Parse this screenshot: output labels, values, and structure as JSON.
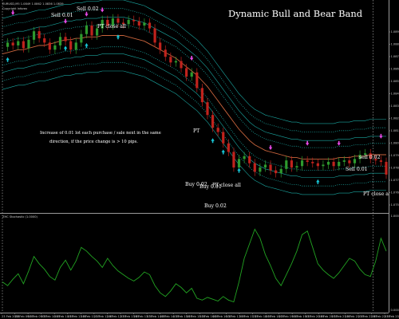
{
  "chart_data": [
    {
      "type": "line",
      "title": "Dynamic Bull and Bear Band",
      "header": "EURUSD,M5 1.0849 1.0862 1.0836 1.0839",
      "copyright": "Copyright Inforex",
      "annotations": [
        "Sell 0.01",
        "Sell 0.02",
        "PT close all",
        "PT",
        "Buy 0.02",
        "Buy 0.01",
        "PT close all",
        "Buy 0.02",
        "Sell 0.01",
        "sell 0.02",
        "PT close all"
      ],
      "note": [
        "Increase of 0.01 lot each purchase / sale next in the same",
        "direction, if the price change is > 10 pips."
      ],
      "y_ticks": [
        "1.0890",
        "1.0880",
        "1.0870",
        "1.0860",
        "1.0850",
        "1.0840",
        "1.0830",
        "1.0820",
        "1.0810",
        "1.0800",
        "1.0790",
        "1.0780",
        "1.0770",
        "1.0760",
        "1.0750"
      ],
      "x_ticks": [
        "23 Feb 2016",
        "23 Feb 09:05",
        "23 Feb 09:35",
        "23 Feb 10:05",
        "23 Feb 10:35",
        "23 Feb 11:05",
        "23 Feb 11:35",
        "23 Feb 12:05",
        "23 Feb 12:35",
        "23 Feb 13:05",
        "23 Feb 13:35",
        "23 Feb 14:05",
        "23 Feb 14:35",
        "23 Feb 15:05",
        "23 Feb 15:35",
        "23 Feb 16:05",
        "23 Feb 16:35",
        "23 Feb 17:05",
        "23 Feb 17:35",
        "23 Feb 18:05",
        "23 Feb 18:35",
        "23 Feb 19:05",
        "23 Feb 19:35",
        "23 Feb 20:05",
        "23 Feb 20:35",
        "23 Feb 21:05",
        "23 Feb 21:35",
        "23 Feb 22:05",
        "23 Feb 22:35",
        "23 Feb 23:05"
      ],
      "price": [
        1.0868,
        1.0871,
        1.0869,
        1.0872,
        1.0867,
        1.0873,
        1.0879,
        1.0874,
        1.0871,
        1.0866,
        1.0869,
        1.0875,
        1.0872,
        1.0866,
        1.0871,
        1.0877,
        1.0883,
        1.0876,
        1.0881,
        1.0887,
        1.0883,
        1.0888,
        1.0885,
        1.0884,
        1.0887,
        1.0886,
        1.0883,
        1.0885,
        1.0881,
        1.0871,
        1.0866,
        1.0861,
        1.0857,
        1.0858,
        1.0853,
        1.0847,
        1.085,
        1.0839,
        1.0829,
        1.082,
        1.0811,
        1.0808,
        1.08,
        1.0794,
        1.0783,
        1.0789,
        1.0791,
        1.0786,
        1.078,
        1.0783,
        1.0785,
        1.0781,
        1.0779,
        1.0782,
        1.0788,
        1.0783,
        1.0784,
        1.0788,
        1.0787,
        1.0786,
        1.0784,
        1.0785,
        1.0787,
        1.0784,
        1.0787,
        1.0788,
        1.0786,
        1.0789,
        1.0792,
        1.0793,
        1.0789,
        1.0788,
        1.0787,
        1.0778
      ],
      "band_mid": [
        1.0863,
        1.0864,
        1.0865,
        1.0866,
        1.0866,
        1.0867,
        1.0868,
        1.0869,
        1.0869,
        1.087,
        1.0871,
        1.0872,
        1.0873,
        1.0873,
        1.0874,
        1.0874,
        1.0875,
        1.0875,
        1.0875,
        1.0876,
        1.0876,
        1.0876,
        1.0876,
        1.0876,
        1.0875,
        1.0874,
        1.0873,
        1.0872,
        1.087,
        1.0868,
        1.0866,
        1.0864,
        1.0862,
        1.086,
        1.0857,
        1.0854,
        1.0851,
        1.0848,
        1.0844,
        1.084,
        1.0835,
        1.083,
        1.0825,
        1.082,
        1.0815,
        1.081,
        1.0806,
        1.0802,
        1.0799,
        1.0797,
        1.0795,
        1.0794,
        1.0793,
        1.0792,
        1.0791,
        1.079,
        1.079,
        1.0789,
        1.0789,
        1.0789,
        1.0789,
        1.0789,
        1.0789,
        1.0789,
        1.079,
        1.079,
        1.079,
        1.0791,
        1.0791,
        1.0791,
        1.0792,
        1.0792,
        1.0792,
        1.0792
      ],
      "band_offsets": [
        0.0008,
        0.0013,
        0.0019,
        0.0025
      ],
      "buy_arrows": [
        {
          "i": 1,
          "p": 1.0859
        },
        {
          "i": 12,
          "p": 1.0867
        },
        {
          "i": 16,
          "p": 1.0869
        },
        {
          "i": 22,
          "p": 1.0875
        },
        {
          "i": 40,
          "p": 1.0802
        },
        {
          "i": 42,
          "p": 1.0794
        },
        {
          "i": 45,
          "p": 1.0781
        },
        {
          "i": 60,
          "p": 1.0773
        }
      ],
      "sell_arrows": [
        {
          "i": 2,
          "p": 1.0892
        },
        {
          "i": 12,
          "p": 1.0886
        },
        {
          "i": 16,
          "p": 1.0891
        },
        {
          "i": 19,
          "p": 1.0894
        },
        {
          "i": 36,
          "p": 1.086
        },
        {
          "i": 51,
          "p": 1.0797
        },
        {
          "i": 58,
          "p": 1.08
        },
        {
          "i": 64,
          "p": 1.08
        },
        {
          "i": 72,
          "p": 1.0805
        }
      ],
      "x_dividers": [
        0.0,
        70.5
      ],
      "color_price_up": "#2e9a2e",
      "color_price_down": "#c0231d",
      "color_mid": "#c8643c",
      "color_band": "#1aa6a0",
      "color_buy": "#17c6d6",
      "color_sell": "#e84ae8"
    },
    {
      "type": "line",
      "header": "ZHC Stochastic (1.0000)",
      "series": [
        {
          "values": [
            0.32,
            0.28,
            0.35,
            0.41,
            0.3,
            0.44,
            0.6,
            0.52,
            0.46,
            0.38,
            0.34,
            0.48,
            0.56,
            0.45,
            0.55,
            0.7,
            0.66,
            0.6,
            0.55,
            0.48,
            0.58,
            0.5,
            0.44,
            0.4,
            0.36,
            0.33,
            0.37,
            0.43,
            0.4,
            0.28,
            0.2,
            0.16,
            0.22,
            0.3,
            0.26,
            0.2,
            0.25,
            0.14,
            0.12,
            0.15,
            0.13,
            0.11,
            0.16,
            0.12,
            0.1,
            0.32,
            0.58,
            0.74,
            0.9,
            0.8,
            0.62,
            0.5,
            0.36,
            0.28,
            0.4,
            0.52,
            0.66,
            0.84,
            0.88,
            0.7,
            0.52,
            0.45,
            0.4,
            0.36,
            0.42,
            0.5,
            0.58,
            0.55,
            0.46,
            0.4,
            0.38,
            0.55,
            0.8,
            0.66
          ]
        }
      ],
      "ylim": [
        0,
        1
      ]
    }
  ]
}
